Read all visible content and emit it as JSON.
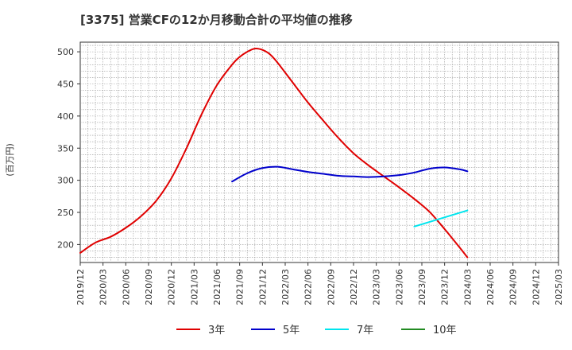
{
  "chart_data": {
    "type": "line",
    "title": "[3375]  営業CFの12か月移動合計の平均値の推移",
    "ylabel": "(百万円)",
    "xlabel": "",
    "ylim": [
      172,
      515
    ],
    "yticks": [
      200,
      250,
      300,
      350,
      400,
      450,
      500
    ],
    "x_ticks": [
      "2019/12",
      "2020/03",
      "2020/06",
      "2020/09",
      "2020/12",
      "2021/03",
      "2021/06",
      "2021/09",
      "2021/12",
      "2022/03",
      "2022/06",
      "2022/09",
      "2022/12",
      "2023/03",
      "2023/06",
      "2023/09",
      "2023/12",
      "2024/03",
      "2024/06",
      "2024/09",
      "2024/12",
      "2025/03"
    ],
    "grid": true,
    "legend_position": "bottom",
    "series": [
      {
        "name": "3年",
        "color": "#e00000",
        "x": [
          "2019/12",
          "2020/02",
          "2020/04",
          "2020/06",
          "2020/08",
          "2020/10",
          "2020/12",
          "2021/02",
          "2021/04",
          "2021/06",
          "2021/08",
          "2021/09",
          "2021/10",
          "2021/11",
          "2021/12",
          "2022/01",
          "2022/02",
          "2022/04",
          "2022/06",
          "2022/08",
          "2022/10",
          "2022/12",
          "2023/02",
          "2023/04",
          "2023/06",
          "2023/08",
          "2023/10",
          "2023/12",
          "2024/02",
          "2024/03"
        ],
        "values": [
          187,
          203,
          212,
          226,
          244,
          268,
          303,
          350,
          403,
          448,
          480,
          492,
          500,
          505,
          503,
          496,
          483,
          452,
          421,
          393,
          366,
          342,
          323,
          306,
          289,
          271,
          251,
          224,
          195,
          180
        ]
      },
      {
        "name": "5年",
        "color": "#0000cc",
        "x": [
          "2021/08",
          "2021/10",
          "2021/12",
          "2022/02",
          "2022/04",
          "2022/06",
          "2022/08",
          "2022/10",
          "2022/12",
          "2023/02",
          "2023/04",
          "2023/06",
          "2023/08",
          "2023/10",
          "2023/12",
          "2024/02",
          "2024/03"
        ],
        "values": [
          298,
          311,
          319,
          321,
          317,
          313,
          310,
          307,
          306,
          305,
          306,
          308,
          312,
          318,
          320,
          317,
          314
        ]
      },
      {
        "name": "7年",
        "color": "#00e5ee",
        "x": [
          "2023/08",
          "2024/03"
        ],
        "values": [
          228,
          253
        ]
      },
      {
        "name": "10年",
        "color": "#228b22",
        "x": [],
        "values": []
      }
    ]
  }
}
